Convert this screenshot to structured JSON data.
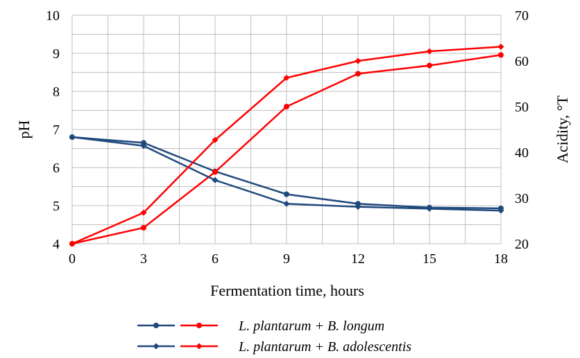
{
  "chart_data": {
    "type": "line",
    "xlabel": "Fermentation time, hours",
    "ylabel_left": "pH",
    "ylabel_right": "Acidity, °T",
    "x": [
      0,
      3,
      6,
      9,
      12,
      15,
      18
    ],
    "x_ticks": [
      "0",
      "3",
      "6",
      "9",
      "12",
      "15",
      "18"
    ],
    "xlim": [
      0,
      18
    ],
    "ylim_left": [
      4,
      10
    ],
    "y_ticks_left": [
      "4",
      "5",
      "6",
      "7",
      "8",
      "9",
      "10"
    ],
    "ylim_right": [
      20,
      70
    ],
    "y_ticks_right": [
      "20",
      "30",
      "40",
      "50",
      "60",
      "70"
    ],
    "grid": true,
    "legend_position": "bottom",
    "series": [
      {
        "name": "L. plantarum + B. longum",
        "axis": "left",
        "color": "#1f497d",
        "marker": "circle",
        "values": [
          6.8,
          6.65,
          5.9,
          5.3,
          5.05,
          4.95,
          4.93
        ]
      },
      {
        "name": "L. plantarum + B. longum",
        "axis": "right",
        "color": "#ff0000",
        "marker": "circle",
        "values": [
          20,
          23.5,
          35.7,
          50,
          57.2,
          59,
          61.3
        ]
      },
      {
        "name": "L. plantarum + B. adolescentis",
        "axis": "left",
        "color": "#1f497d",
        "marker": "diamond",
        "values": [
          6.8,
          6.57,
          5.67,
          5.05,
          4.97,
          4.92,
          4.87
        ]
      },
      {
        "name": "L. plantarum + B. adolescentis",
        "axis": "right",
        "color": "#ff0000",
        "marker": "diamond",
        "values": [
          20,
          26.8,
          42.7,
          56.3,
          60,
          62.1,
          63.1
        ]
      }
    ],
    "legend": [
      {
        "label": "L. plantarum + B. longum",
        "marker": "circle"
      },
      {
        "label": "L. plantarum + B. adolescentis",
        "marker": "diamond"
      }
    ]
  }
}
